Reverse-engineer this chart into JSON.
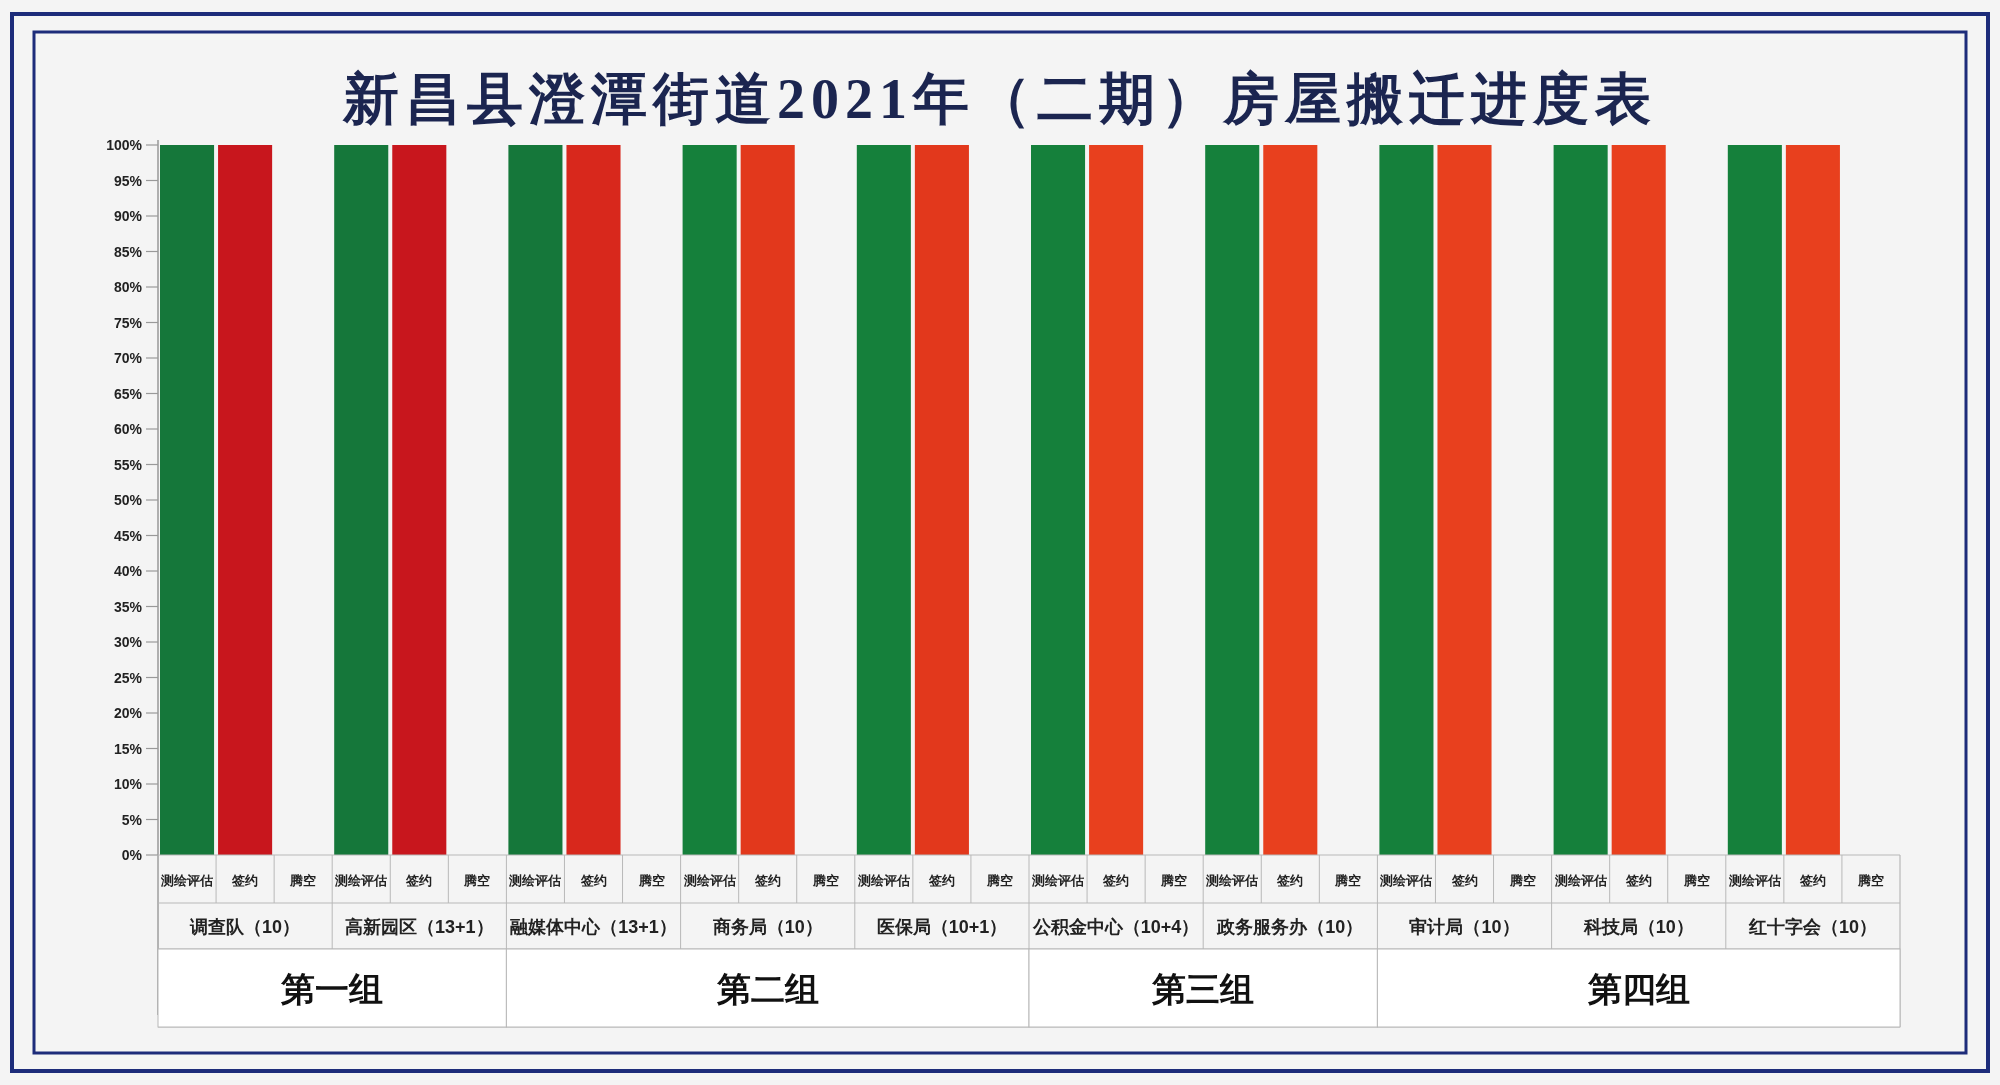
{
  "chart_data": {
    "type": "bar",
    "title": "新昌县澄潭街道2021年（二期）房屋搬迁进度表",
    "categories": [
      "调查队（10）",
      "高新园区（13+1）",
      "融媒体中心（13+1）",
      "商务局（10）",
      "医保局（10+1）",
      "公积金中心（10+4）",
      "政务服务办（10）",
      "审计局（10）",
      "科技局（10）",
      "红十字会（10）"
    ],
    "series": [
      {
        "name": "测绘评估",
        "colors": [
          "#15773a",
          "#15773a",
          "#15773a",
          "#15803b",
          "#15803b",
          "#15803b",
          "#15803b",
          "#15803b",
          "#15803b",
          "#15803b"
        ],
        "values": [
          100,
          100,
          100,
          100,
          100,
          100,
          100,
          100,
          100,
          100
        ]
      },
      {
        "name": "签约",
        "colors": [
          "#c8161d",
          "#c8161d",
          "#d8281c",
          "#e2381c",
          "#e2381c",
          "#e8401e",
          "#e8401e",
          "#e8401e",
          "#e8401e",
          "#e8401e"
        ],
        "values": [
          100,
          100,
          100,
          100,
          100,
          100,
          100,
          100,
          100,
          100
        ]
      },
      {
        "name": "腾空",
        "colors": [
          "#e8401e",
          "#e8401e",
          "#e8401e",
          "#e8401e",
          "#e8401e",
          "#e8401e",
          "#e8401e",
          "#e8401e",
          "#e8401e",
          "#e8401e"
        ],
        "values": [
          0,
          0,
          0,
          0,
          0,
          0,
          0,
          0,
          0,
          0
        ]
      }
    ],
    "ylim": [
      0,
      100
    ],
    "yticks": [
      {
        "value": 0,
        "label": "0%"
      },
      {
        "value": 5,
        "label": "5%"
      },
      {
        "value": 10,
        "label": "10%"
      },
      {
        "value": 15,
        "label": "15%"
      },
      {
        "value": 20,
        "label": "20%"
      },
      {
        "value": 25,
        "label": "25%"
      },
      {
        "value": 30,
        "label": "30%"
      },
      {
        "value": 35,
        "label": "35%"
      },
      {
        "value": 40,
        "label": "40%"
      },
      {
        "value": 45,
        "label": "45%"
      },
      {
        "value": 50,
        "label": "50%"
      },
      {
        "value": 55,
        "label": "55%"
      },
      {
        "value": 60,
        "label": "60%"
      },
      {
        "value": 65,
        "label": "65%"
      },
      {
        "value": 70,
        "label": "70%"
      },
      {
        "value": 75,
        "label": "75%"
      },
      {
        "value": 80,
        "label": "80%"
      },
      {
        "value": 85,
        "label": "85%"
      },
      {
        "value": 90,
        "label": "90%"
      },
      {
        "value": 95,
        "label": "95%"
      },
      {
        "value": 100,
        "label": "100%"
      }
    ],
    "annotations": [
      "第一组",
      "第二组",
      "第三组",
      "第四组"
    ]
  }
}
